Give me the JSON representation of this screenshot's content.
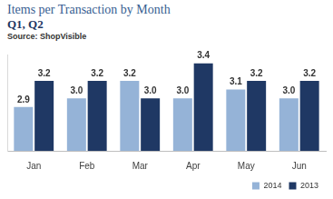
{
  "chart_data": {
    "type": "bar",
    "title": "Items per Transaction by Month",
    "subtitle": "Q1, Q2",
    "source": "Source: ShopVisible",
    "categories": [
      "Jan",
      "Feb",
      "Mar",
      "Apr",
      "May",
      "Jun"
    ],
    "series": [
      {
        "name": "2014",
        "color": "#95b3d7",
        "values": [
          2.9,
          3.0,
          3.2,
          3.0,
          3.1,
          3.0
        ],
        "value_labels": [
          "2.9",
          "3.0",
          "3.2",
          "3.0",
          "3.1",
          "3.0"
        ]
      },
      {
        "name": "2013",
        "color": "#1f3864",
        "values": [
          3.2,
          3.2,
          3.0,
          3.4,
          3.2,
          3.2
        ],
        "value_labels": [
          "3.2",
          "3.2",
          "3.0",
          "3.4",
          "3.2",
          "3.2"
        ]
      }
    ],
    "ylim": [
      2.4,
      3.5
    ],
    "grid": false,
    "legend": "bottom",
    "data_labels": true,
    "tick_labels": "x"
  }
}
